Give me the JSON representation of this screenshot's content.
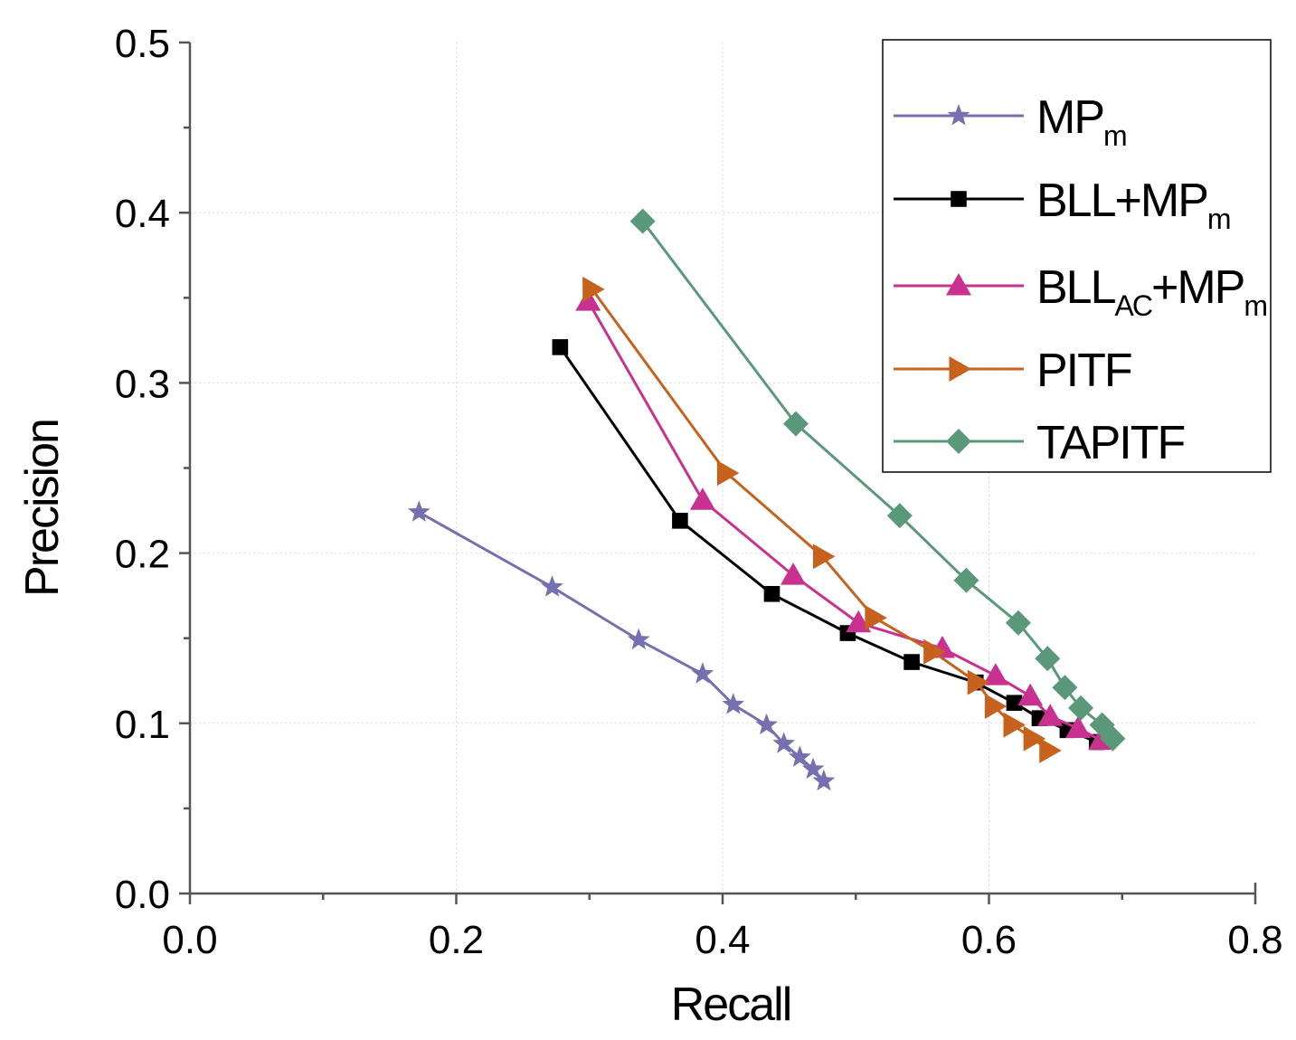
{
  "chart_data": {
    "type": "line",
    "xlabel": "Recall",
    "ylabel": "Precision",
    "xlim": [
      0,
      0.8
    ],
    "ylim": [
      0,
      0.5
    ],
    "xticks": [
      "0.0",
      "0.2",
      "0.4",
      "0.6",
      "0.8"
    ],
    "yticks": [
      "0.0",
      "0.1",
      "0.2",
      "0.3",
      "0.4",
      "0.5"
    ],
    "grid": true,
    "legend_position": "top-right",
    "series": [
      {
        "name": "MP",
        "sub": "m",
        "color": "#7570b0",
        "marker": "star",
        "line": "solid",
        "x": [
          0.172,
          0.272,
          0.337,
          0.385,
          0.408,
          0.433,
          0.446,
          0.458,
          0.468,
          0.476
        ],
        "y": [
          0.224,
          0.18,
          0.149,
          0.129,
          0.111,
          0.099,
          0.088,
          0.08,
          0.073,
          0.066
        ]
      },
      {
        "name": "BLL+MP",
        "sub": "m",
        "color": "#000000",
        "marker": "square",
        "line": "solid",
        "x": [
          0.278,
          0.368,
          0.437,
          0.494,
          0.542,
          0.59,
          0.619,
          0.638,
          0.659,
          0.681
        ],
        "y": [
          0.321,
          0.219,
          0.176,
          0.153,
          0.136,
          0.124,
          0.112,
          0.103,
          0.096,
          0.089
        ]
      },
      {
        "name": "BLL",
        "sub": "AC",
        "name2": "+MP",
        "sub2": "m",
        "color": "#c8318f",
        "marker": "triangle-up",
        "line": "solid",
        "x": [
          0.299,
          0.385,
          0.453,
          0.502,
          0.565,
          0.605,
          0.631,
          0.646,
          0.667,
          0.684
        ],
        "y": [
          0.348,
          0.231,
          0.187,
          0.159,
          0.144,
          0.128,
          0.116,
          0.104,
          0.097,
          0.09
        ]
      },
      {
        "name": "PITF",
        "color": "#c6621d",
        "marker": "triangle-right",
        "line": "solid",
        "x": [
          0.302,
          0.403,
          0.475,
          0.514,
          0.558,
          0.591,
          0.604,
          0.618,
          0.633,
          0.645
        ],
        "y": [
          0.355,
          0.247,
          0.198,
          0.162,
          0.142,
          0.124,
          0.11,
          0.099,
          0.091,
          0.084
        ]
      },
      {
        "name": "TAPITF",
        "color": "#59997a",
        "marker": "diamond",
        "line": "solid",
        "x": [
          0.34,
          0.455,
          0.533,
          0.583,
          0.622,
          0.644,
          0.657,
          0.669,
          0.685,
          0.693
        ],
        "y": [
          0.395,
          0.276,
          0.222,
          0.184,
          0.159,
          0.138,
          0.121,
          0.109,
          0.099,
          0.091
        ]
      }
    ]
  }
}
